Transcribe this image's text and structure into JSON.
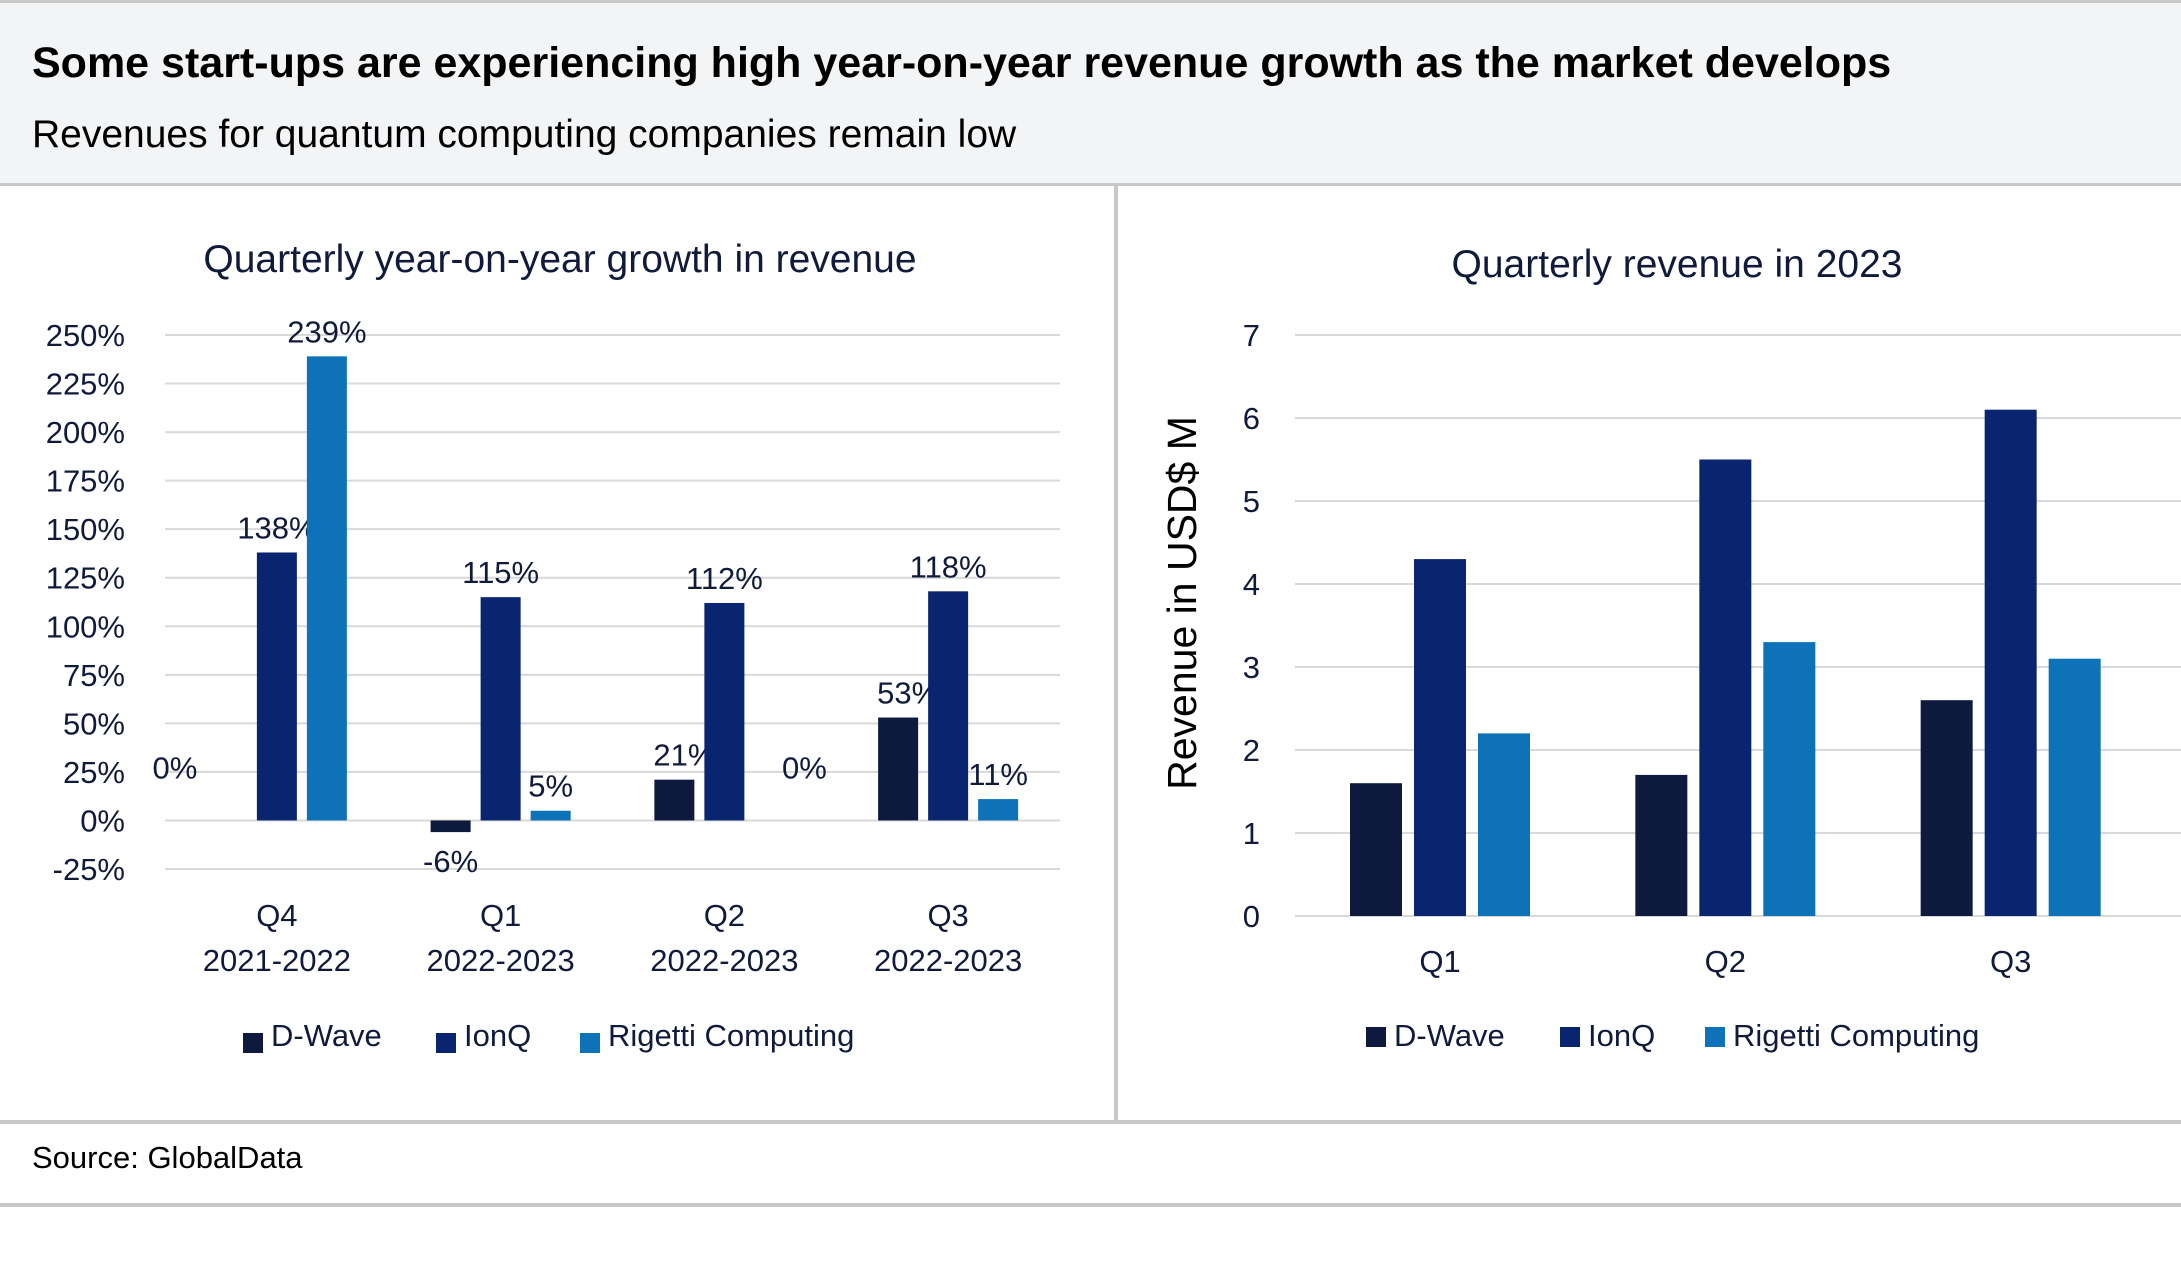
{
  "header": {
    "title": "Some start-ups are experiencing high year-on-year revenue growth as the market develops",
    "subtitle": "Revenues for quantum computing companies remain low"
  },
  "footer": {
    "source": "Source: GlobalData"
  },
  "colors": {
    "D-Wave": "#0d1a3e",
    "IonQ": "#0a2570",
    "Rigetti Computing": "#0e72b8",
    "grid": "#d9d9d9",
    "text": "#101a3a"
  },
  "chart_data": [
    {
      "type": "bar",
      "title": "Quarterly year-on-year growth in revenue",
      "categories": [
        [
          "Q4",
          "2021-2022"
        ],
        [
          "Q1",
          "2022-2023"
        ],
        [
          "Q2",
          "2022-2023"
        ],
        [
          "Q3",
          "2022-2023"
        ]
      ],
      "series": [
        {
          "name": "D-Wave",
          "values": [
            0,
            -6,
            21,
            53
          ],
          "labels": [
            "0%",
            "-6%",
            "21%",
            "53%"
          ]
        },
        {
          "name": "IonQ",
          "values": [
            138,
            115,
            112,
            118
          ],
          "labels": [
            "138%",
            "115%",
            "112%",
            "118%"
          ]
        },
        {
          "name": "Rigetti Computing",
          "values": [
            239,
            5,
            0,
            11
          ],
          "labels": [
            "239%",
            "5%",
            "0%",
            "11%"
          ]
        }
      ],
      "yticks": [
        -25,
        0,
        25,
        50,
        75,
        100,
        125,
        150,
        175,
        200,
        225,
        250
      ],
      "ytick_labels": [
        "-25%",
        "0%",
        "25%",
        "50%",
        "75%",
        "100%",
        "125%",
        "150%",
        "175%",
        "200%",
        "225%",
        "250%"
      ],
      "ylim": [
        -25,
        250
      ],
      "xlabel": "",
      "ylabel": "",
      "grid": true,
      "legend": "bottom"
    },
    {
      "type": "bar",
      "title": "Quarterly revenue in 2023",
      "categories": [
        "Q1",
        "Q2",
        "Q3"
      ],
      "series": [
        {
          "name": "D-Wave",
          "values": [
            1.6,
            1.7,
            2.6
          ]
        },
        {
          "name": "IonQ",
          "values": [
            4.3,
            5.5,
            6.1
          ]
        },
        {
          "name": "Rigetti Computing",
          "values": [
            2.2,
            3.3,
            3.1
          ]
        }
      ],
      "yticks": [
        0,
        1,
        2,
        3,
        4,
        5,
        6,
        7
      ],
      "ylim": [
        0,
        7
      ],
      "xlabel": "",
      "ylabel": "Revenue in USD$ M",
      "grid": true,
      "legend": "bottom"
    }
  ]
}
